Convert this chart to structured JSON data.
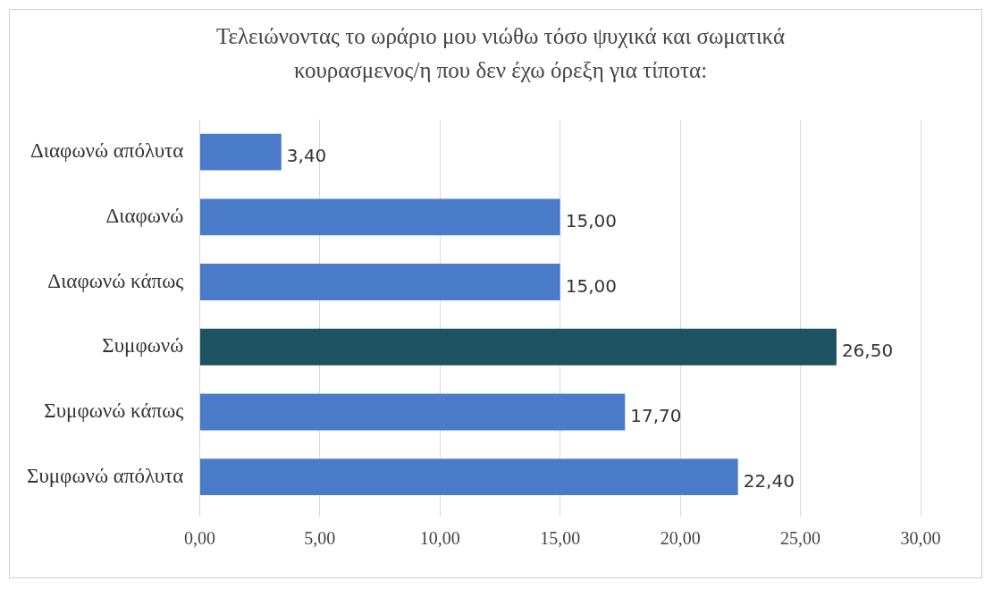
{
  "chart_data": {
    "type": "bar",
    "orientation": "horizontal",
    "title": "Τελειώνοντας το ωράριο μου νιώθω τόσο ψυχικά και σωματικά κουρασμενος/η που δεν έχω όρεξη για τίποτα:",
    "categories": [
      "Διαφωνώ απόλυτα",
      "Διαφωνώ",
      "Διαφωνώ κάπως",
      "Συμφωνώ",
      "Συμφωνώ κάπως",
      "Συμφωνώ απόλυτα"
    ],
    "values": [
      3.4,
      15,
      15,
      26.5,
      17.7,
      22.4
    ],
    "colors": [
      "#4a7bc8",
      "#4a7bc8",
      "#4a7bc8",
      "#1d5360",
      "#4a7bc8",
      "#4a7bc8"
    ],
    "value_labels": [
      "3,40",
      "15,00",
      "15,00",
      "26,50",
      "17,70",
      "22,40"
    ],
    "xlim": [
      0,
      30
    ],
    "xticks": [
      {
        "value": 0,
        "label": "0,00"
      },
      {
        "value": 5,
        "label": "5,00"
      },
      {
        "value": 10,
        "label": "10,00"
      },
      {
        "value": 15,
        "label": "15,00"
      },
      {
        "value": 20,
        "label": "20,00"
      },
      {
        "value": 25,
        "label": "25,00"
      },
      {
        "value": 30,
        "label": "30,00"
      }
    ],
    "grid": "x",
    "legend": false
  }
}
